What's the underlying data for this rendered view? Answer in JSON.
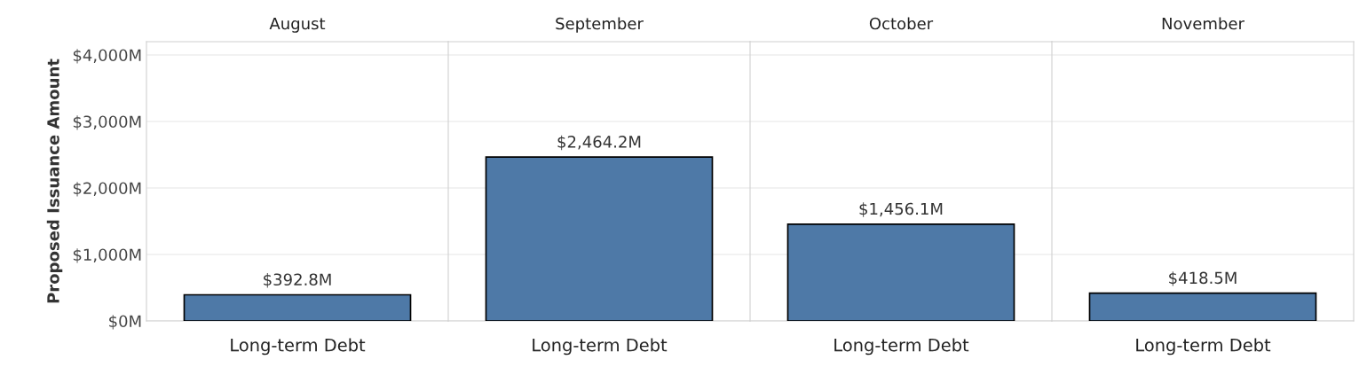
{
  "chart_data": [
    {
      "type": "bar",
      "title": "August",
      "ylabel": "Proposed Issuance Amount",
      "categories": [
        "Long-term Debt"
      ],
      "values": [
        392.8
      ],
      "value_labels": [
        "$392.8M"
      ],
      "color": "#4e79a7",
      "ylim": [
        0,
        4200
      ],
      "yticks": [
        {
          "value": 0,
          "label": "$0M"
        },
        {
          "value": 1000,
          "label": "$1,000M"
        },
        {
          "value": 2000,
          "label": "$2,000M"
        },
        {
          "value": 3000,
          "label": "$3,000M"
        },
        {
          "value": 4000,
          "label": "$4,000M"
        }
      ],
      "grid": "y"
    },
    {
      "type": "bar",
      "title": "September",
      "categories": [
        "Long-term Debt"
      ],
      "values": [
        2464.2
      ],
      "value_labels": [
        "$2,464.2M"
      ],
      "color": "#4e79a7",
      "ylim": [
        0,
        4200
      ],
      "yticks": [
        {
          "value": 0,
          "label": null
        },
        {
          "value": 1000,
          "label": null
        },
        {
          "value": 2000,
          "label": null
        },
        {
          "value": 3000,
          "label": null
        },
        {
          "value": 4000,
          "label": null
        }
      ],
      "grid": "y",
      "tick_labels": "x"
    },
    {
      "type": "bar",
      "title": "October",
      "categories": [
        "Long-term Debt"
      ],
      "values": [
        1456.1
      ],
      "value_labels": [
        "$1,456.1M"
      ],
      "color": "#4e79a7",
      "ylim": [
        0,
        4200
      ],
      "yticks": [
        {
          "value": 0,
          "label": null
        },
        {
          "value": 1000,
          "label": null
        },
        {
          "value": 2000,
          "label": null
        },
        {
          "value": 3000,
          "label": null
        },
        {
          "value": 4000,
          "label": null
        }
      ],
      "grid": "y",
      "tick_labels": "x"
    },
    {
      "type": "bar",
      "title": "November",
      "categories": [
        "Long-term Debt"
      ],
      "values": [
        418.5
      ],
      "value_labels": [
        "$418.5M"
      ],
      "color": "#4e79a7",
      "ylim": [
        0,
        4200
      ],
      "yticks": [
        {
          "value": 0,
          "label": null
        },
        {
          "value": 1000,
          "label": null
        },
        {
          "value": 2000,
          "label": null
        },
        {
          "value": 3000,
          "label": null
        },
        {
          "value": 4000,
          "label": null
        }
      ],
      "grid": "y",
      "tick_labels": "x"
    }
  ]
}
